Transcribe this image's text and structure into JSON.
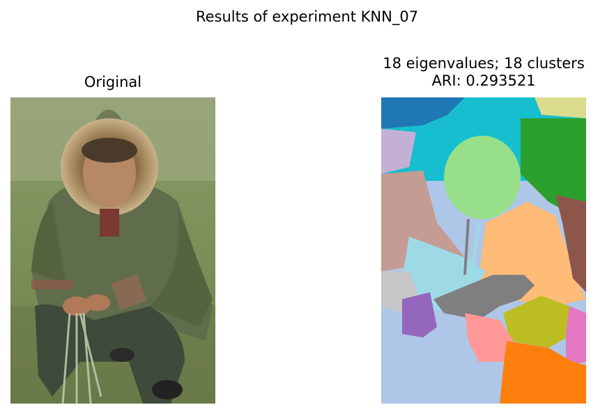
{
  "figure": {
    "suptitle": "Results of experiment KNN_07"
  },
  "left_panel": {
    "title": "Original",
    "image": "photo of a person in a fur-trimmed green hooded parka crouching on grass holding a fishing net"
  },
  "right_panel": {
    "title_line1": "18 eigenvalues; 18 clusters",
    "title_line2": "ARI: 0.293521",
    "image": "segmentation map with 18 colored clusters"
  },
  "colors": {
    "tab_blue": "#1f77b4",
    "tab_cyan": "#17becf",
    "tab_green": "#2ca02c",
    "tab_lightgreen": "#98df8a",
    "tab_olive_light": "#dbdb8d",
    "tab_lavender": "#c5b0d5",
    "tab_rose": "#c49c94",
    "tab_peach": "#ffbb78",
    "tab_brown": "#8c564b",
    "tab_lightcyan": "#9edae5",
    "tab_gray_light": "#c7c7c7",
    "tab_gray": "#7f7f7f",
    "tab_purple": "#9467bd",
    "tab_olive": "#bcbd22",
    "tab_pink": "#e377c2",
    "tab_salmon": "#ff9896",
    "tab_skyblue": "#aec7e8",
    "tab_orange": "#ff7f0e"
  }
}
